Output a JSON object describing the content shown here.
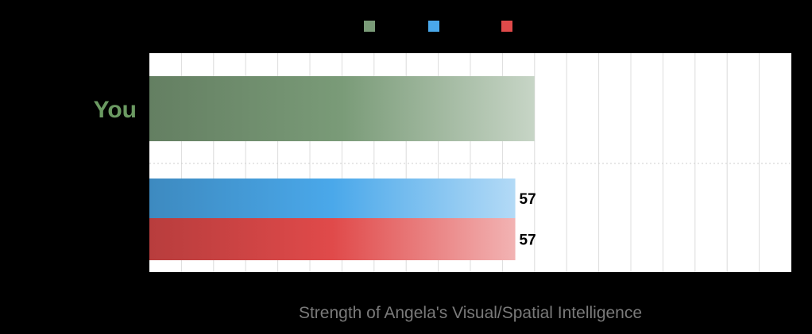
{
  "chart_data": {
    "type": "bar",
    "orientation": "horizontal",
    "categories": [
      "You",
      ""
    ],
    "series": [
      {
        "color": "#7a9b78",
        "values": [
          60,
          null
        ]
      },
      {
        "color": "#4aa8ea",
        "values": [
          null,
          57
        ]
      },
      {
        "color": "#e04a4a",
        "values": [
          null,
          57
        ]
      }
    ],
    "xlabel": "Strength of Angela's Visual/Spatial Intelligence",
    "xlim": [
      0,
      100
    ],
    "grid": true,
    "legend": "top-center",
    "colors": {
      "you_label": "#6b9a62",
      "xlabel": "#7a7a7a",
      "plot_bg": "#ffffff",
      "grid": "#dcdcdc"
    }
  }
}
